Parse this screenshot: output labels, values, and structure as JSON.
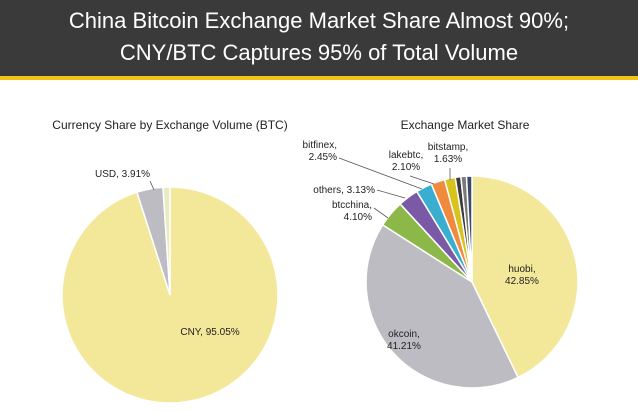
{
  "header": {
    "title_line1": "China Bitcoin Exchange Market Share Almost 90%;",
    "title_line2": "CNY/BTC Captures 95% of Total Volume"
  },
  "colors": {
    "header_bg": "#3a3a3a",
    "accent": "#f0c419"
  },
  "chart_data": [
    {
      "type": "pie",
      "title": "Currency Share by Exchange Volume (BTC)",
      "slices": [
        {
          "label": "CNY",
          "value": 95.05,
          "value_text": "95.05%",
          "color": "#f3e79a"
        },
        {
          "label": "USD",
          "value": 3.91,
          "value_text": "3.91%",
          "color": "#bdbcc2"
        },
        {
          "label": "",
          "value": 1.04,
          "value_text": "",
          "color": "#e8ecc0"
        }
      ]
    },
    {
      "type": "pie",
      "title": "Exchange Market Share",
      "slices": [
        {
          "label": "huobi",
          "value": 42.85,
          "value_text": "42.85%",
          "color": "#f3e79a"
        },
        {
          "label": "okcoin",
          "value": 41.21,
          "value_text": "41.21%",
          "color": "#bdbcc2"
        },
        {
          "label": "btcchina",
          "value": 4.1,
          "value_text": "4.10%",
          "color": "#8cb84a"
        },
        {
          "label": "others",
          "value": 3.13,
          "value_text": "3.13%",
          "color": "#7a5aa6"
        },
        {
          "label": "bitfinex",
          "value": 2.45,
          "value_text": "2.45%",
          "color": "#3aaed0"
        },
        {
          "label": "lakebtc",
          "value": 2.1,
          "value_text": "2.10%",
          "color": "#f08a3c"
        },
        {
          "label": "bitstamp",
          "value": 1.63,
          "value_text": "1.63%",
          "color": "#d8c21c"
        },
        {
          "label": "",
          "value": 0.85,
          "value_text": "",
          "color": "#3a3a3a"
        },
        {
          "label": "",
          "value": 0.85,
          "value_text": "",
          "color": "#7a7a7a"
        },
        {
          "label": "",
          "value": 0.83,
          "value_text": "",
          "color": "#3a4a6a"
        }
      ]
    }
  ]
}
